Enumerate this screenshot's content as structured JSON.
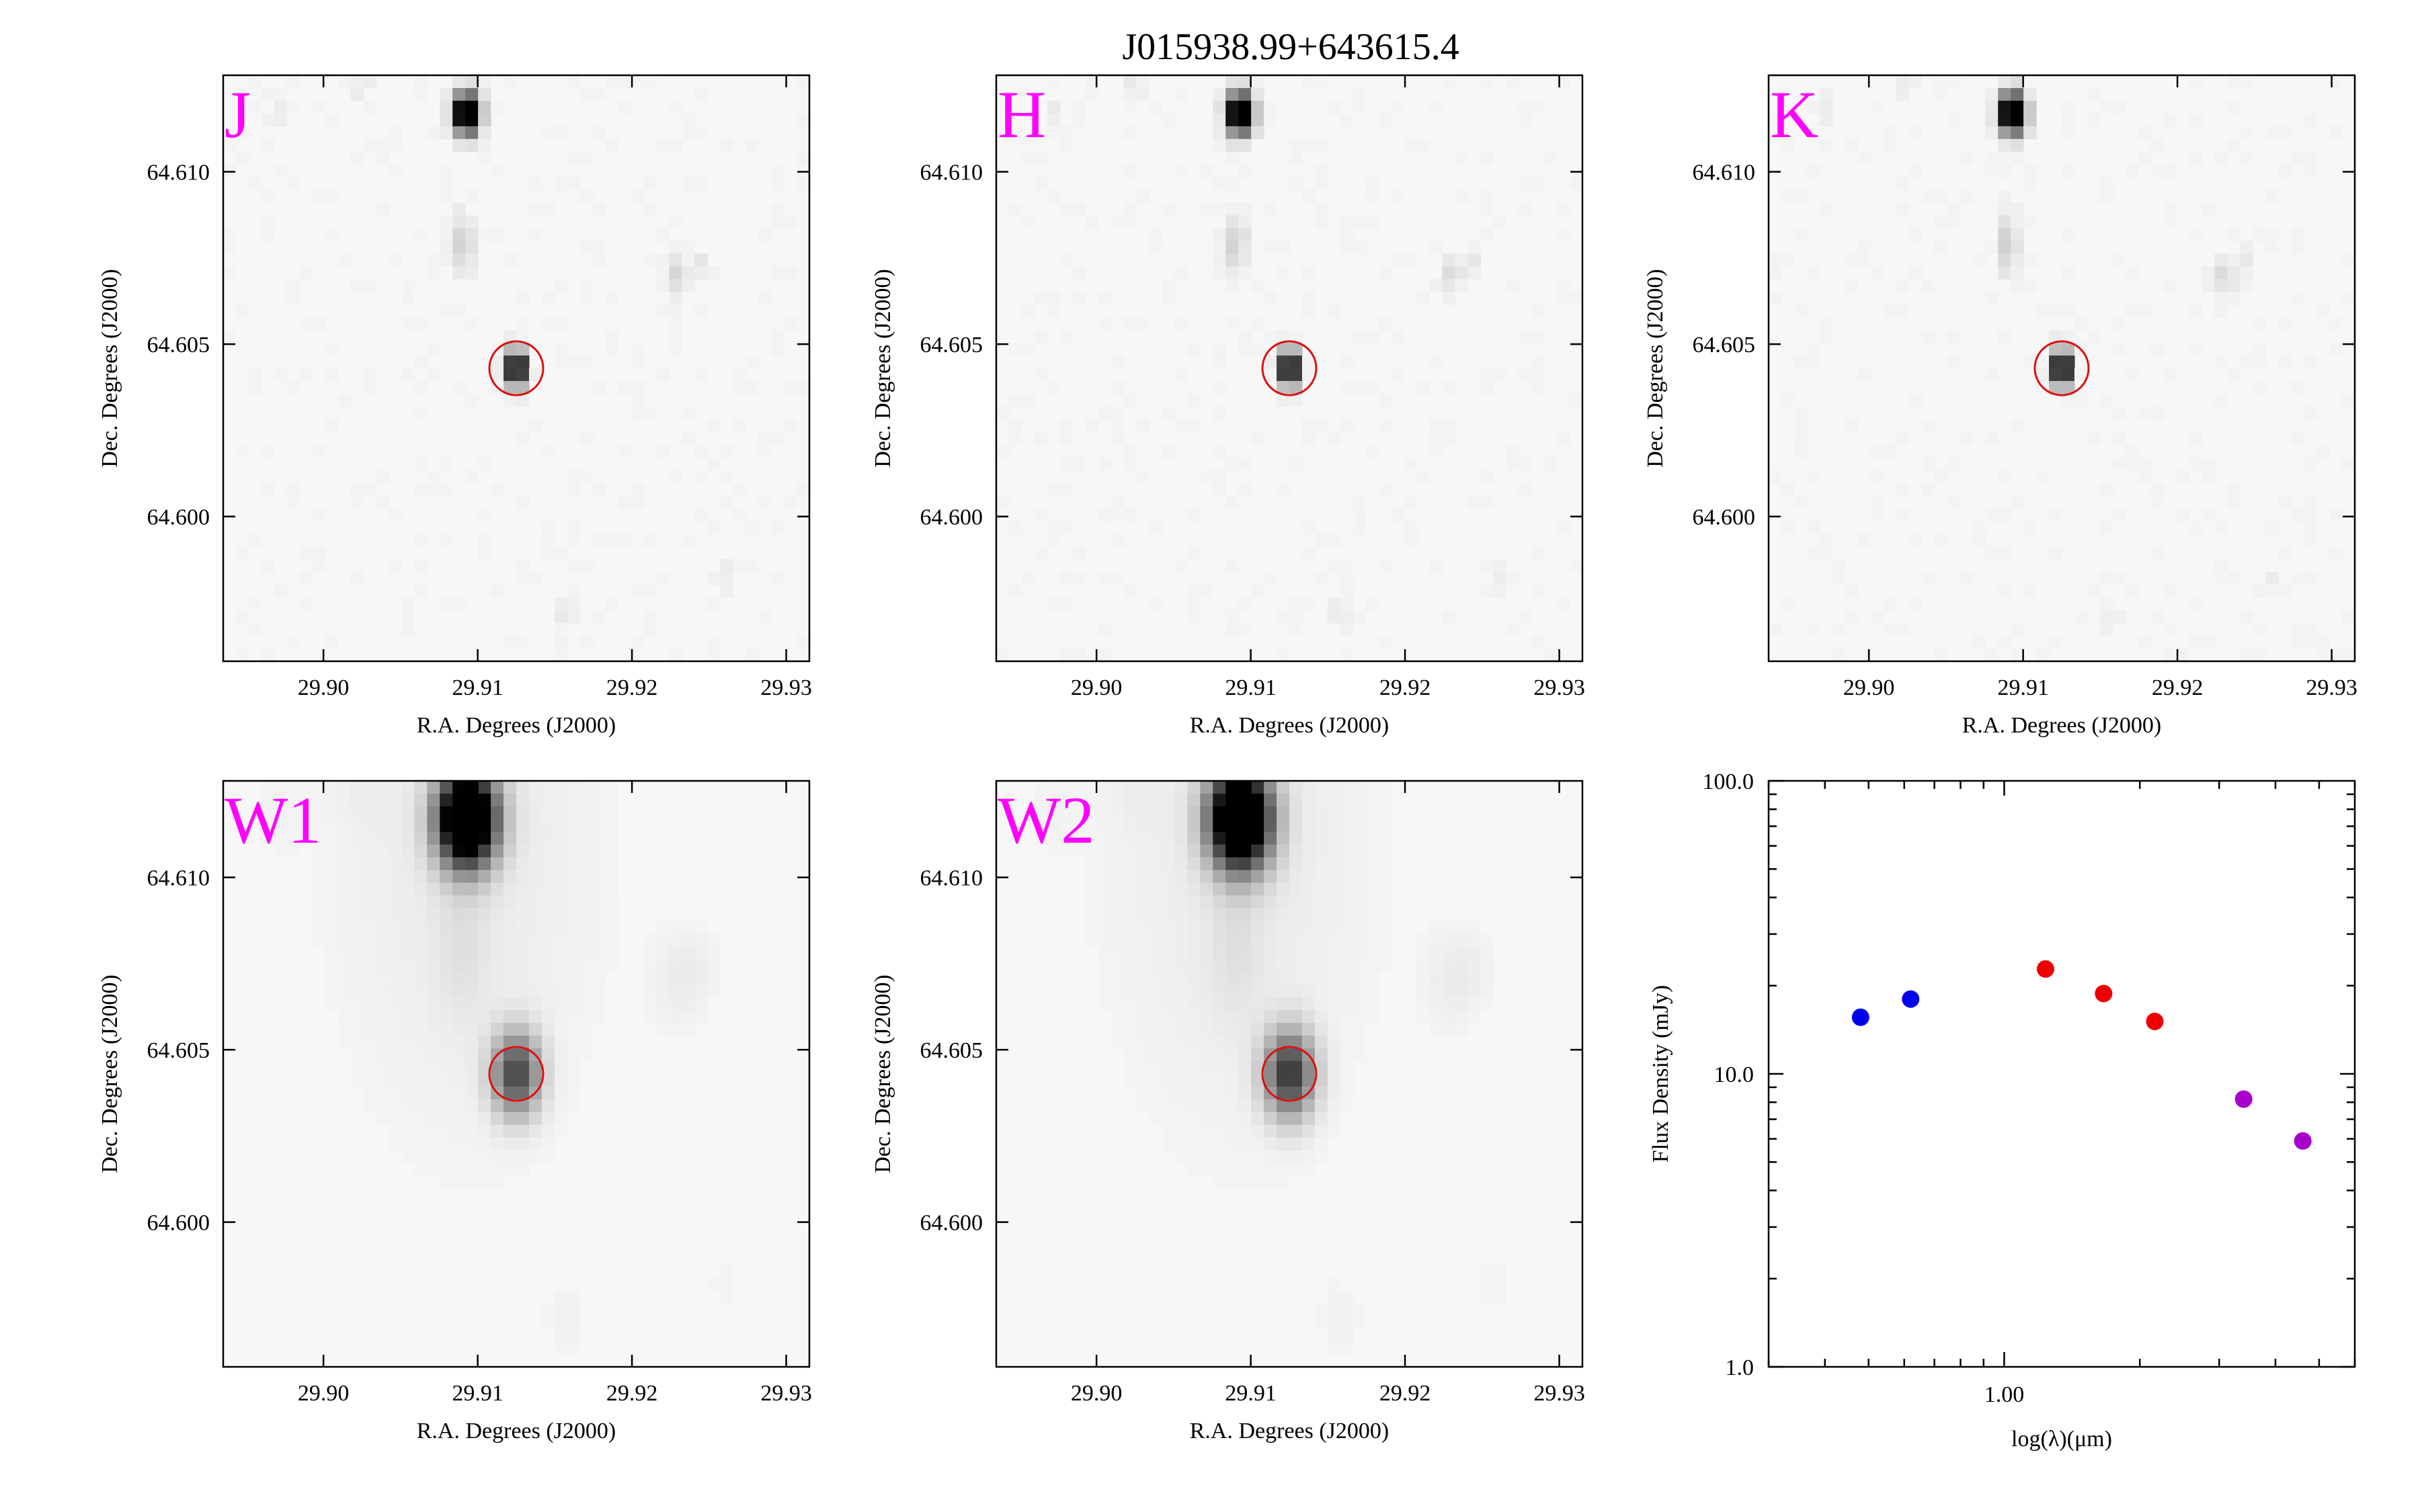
{
  "figure": {
    "title": "J015938.99+643615.4",
    "band_label_color": "#ff00ff",
    "aperture_color": "#dd1111",
    "target_position": {
      "ra": 29.9125,
      "dec": 64.6043
    },
    "panels": [
      {
        "key": "J",
        "label": "J",
        "psf_scale": 1.0,
        "target_peak": 1.0,
        "cutout_style": "2mass"
      },
      {
        "key": "H",
        "label": "H",
        "psf_scale": 1.0,
        "target_peak": 1.0,
        "cutout_style": "2mass"
      },
      {
        "key": "K",
        "label": "K",
        "psf_scale": 1.0,
        "target_peak": 1.0,
        "cutout_style": "2mass"
      },
      {
        "key": "W1",
        "label": "W1",
        "psf_scale": 2.4,
        "target_peak": 0.55,
        "cutout_style": "wise"
      },
      {
        "key": "W2",
        "label": "W2",
        "psf_scale": 2.5,
        "target_peak": 0.6,
        "cutout_style": "wise"
      }
    ],
    "image_axes": {
      "xlabel": "R.A. Degrees (J2000)",
      "ylabel": "Dec. Degrees (J2000)",
      "xlim": [
        29.8935,
        29.9315
      ],
      "ylim": [
        64.5958,
        64.6128
      ],
      "xticks": [
        "29.90",
        "29.91",
        "29.92",
        "29.93"
      ],
      "yticks": [
        "64.600",
        "64.605",
        "64.610"
      ]
    }
  },
  "chart_data": {
    "type": "scatter",
    "xlabel": "log(λ)(μm)",
    "ylabel": "Flux Density (mJy)",
    "x_scale": "log",
    "y_scale": "log",
    "xlim": [
      0.3,
      6.0
    ],
    "ylim": [
      1.0,
      100.0
    ],
    "xtick_labels": [
      "1.00"
    ],
    "ytick_labels": [
      "1.0",
      "10.0",
      "100.0"
    ],
    "grid": false,
    "points": [
      {
        "x": 0.48,
        "y": 15.6,
        "color": "#0000ee"
      },
      {
        "x": 0.62,
        "y": 18.0,
        "color": "#0000ee"
      },
      {
        "x": 1.235,
        "y": 22.8,
        "color": "#ee0000"
      },
      {
        "x": 1.662,
        "y": 18.8,
        "color": "#ee0000"
      },
      {
        "x": 2.159,
        "y": 15.1,
        "color": "#ee0000"
      },
      {
        "x": 3.4,
        "y": 8.2,
        "color": "#aa00cc"
      },
      {
        "x": 4.6,
        "y": 5.9,
        "color": "#aa00cc"
      }
    ]
  }
}
